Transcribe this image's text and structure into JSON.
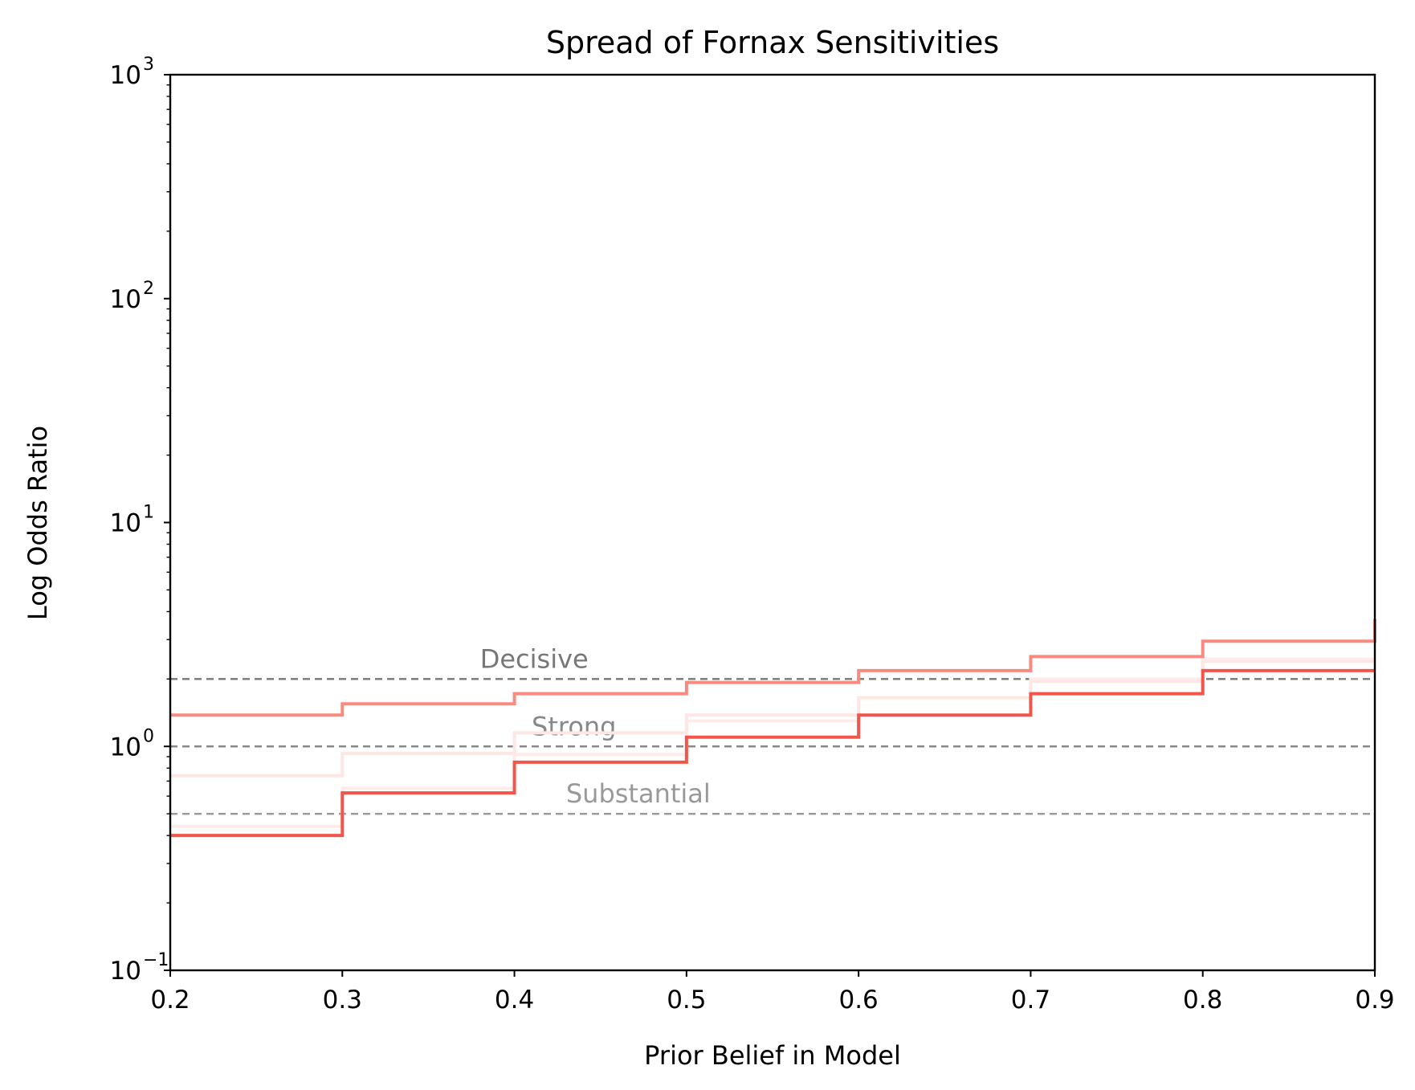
{
  "chart_data": {
    "type": "line",
    "title": "Spread of Fornax Sensitivities",
    "xlabel": "Prior Belief in Model",
    "ylabel": "Log Odds Ratio",
    "xlim": [
      0.2,
      0.9
    ],
    "ylim": [
      0.1,
      1000
    ],
    "yscale": "log",
    "step": "post",
    "grid": false,
    "x_ticks": [
      0.2,
      0.3,
      0.4,
      0.5,
      0.6,
      0.7,
      0.8,
      0.9
    ],
    "x_tick_labels": [
      "0.2",
      "0.3",
      "0.4",
      "0.5",
      "0.6",
      "0.7",
      "0.8",
      "0.9"
    ],
    "y_ticks": [
      {
        "value": 0.1,
        "base": "10",
        "exp": "−1"
      },
      {
        "value": 1,
        "base": "10",
        "exp": "0"
      },
      {
        "value": 10,
        "base": "10",
        "exp": "1"
      },
      {
        "value": 100,
        "base": "10",
        "exp": "2"
      },
      {
        "value": 1000,
        "base": "10",
        "exp": "3"
      }
    ],
    "x": [
      0.2,
      0.3,
      0.4,
      0.5,
      0.6,
      0.7,
      0.8,
      0.9
    ],
    "series": [
      {
        "color": "#fdecea",
        "width": 4,
        "values": [
          0.44,
          0.65,
          0.92,
          1.3,
          1.65,
          2.0,
          2.45,
          2.45
        ]
      },
      {
        "color": "#fde6e4",
        "width": 4,
        "values": [
          0.74,
          0.93,
          1.15,
          1.38,
          1.65,
          1.95,
          2.4,
          2.4
        ]
      },
      {
        "color": "#f98a80",
        "width": 4,
        "values": [
          1.38,
          1.55,
          1.72,
          1.93,
          2.18,
          2.52,
          2.95,
          3.7
        ]
      },
      {
        "color": "#f4554a",
        "width": 4,
        "values": [
          0.4,
          0.62,
          0.85,
          1.1,
          1.38,
          1.72,
          2.18,
          2.18
        ]
      }
    ],
    "thresholds": [
      {
        "label": "Decisive",
        "value": 2,
        "label_x": 0.38,
        "color": "#777777"
      },
      {
        "label": "Strong",
        "value": 1,
        "label_x": 0.41,
        "color": "#888888"
      },
      {
        "label": "Substantial",
        "value": 0.5,
        "label_x": 0.43,
        "color": "#999999"
      }
    ]
  }
}
